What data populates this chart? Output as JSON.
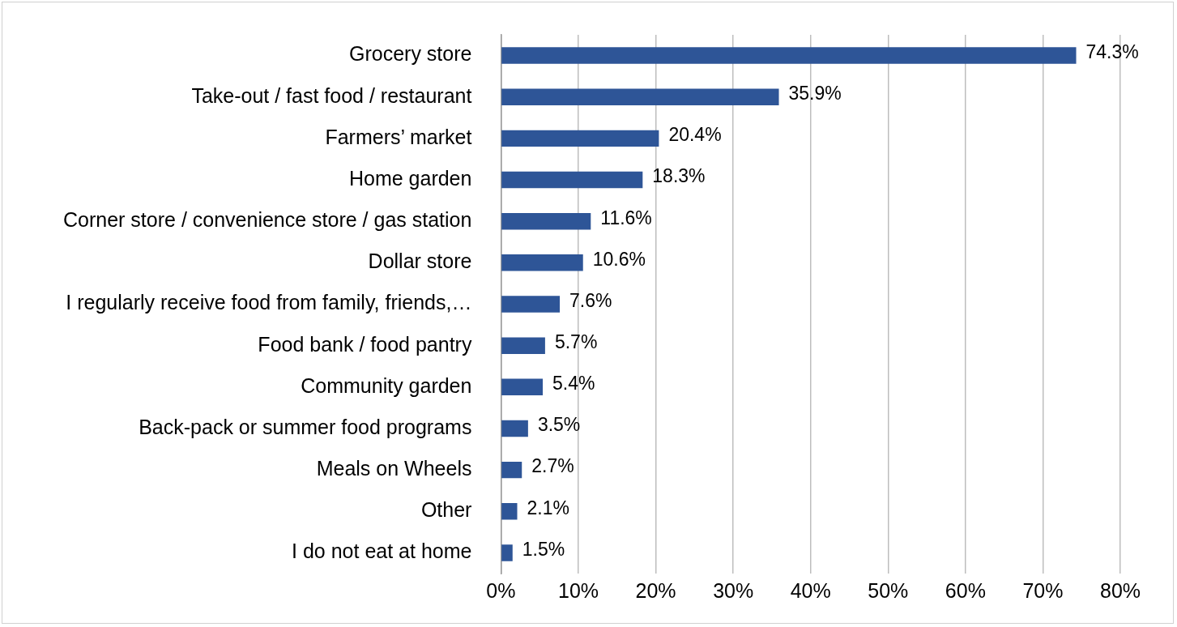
{
  "chart_data": {
    "type": "bar",
    "orientation": "horizontal",
    "categories": [
      "Grocery store",
      "Take-out / fast food / restaurant",
      "Farmers’ market",
      "Home garden",
      "Corner store / convenience store / gas station",
      "Dollar store",
      "I regularly receive food from family, friends,…",
      "Food bank / food pantry",
      "Community garden",
      "Back-pack or summer food programs",
      "Meals on Wheels",
      "Other",
      "I do not eat at home"
    ],
    "values": [
      74.3,
      35.9,
      20.4,
      18.3,
      11.6,
      10.6,
      7.6,
      5.7,
      5.4,
      3.5,
      2.7,
      2.1,
      1.5
    ],
    "value_labels": [
      "74.3%",
      "35.9%",
      "20.4%",
      "18.3%",
      "11.6%",
      "10.6%",
      "7.6%",
      "5.7%",
      "5.4%",
      "3.5%",
      "2.7%",
      "2.1%",
      "1.5%"
    ],
    "color": "#2e5597",
    "xlim": [
      0,
      80
    ],
    "xticks": [
      {
        "value": 0,
        "label": "0%"
      },
      {
        "value": 10,
        "label": "10%"
      },
      {
        "value": 20,
        "label": "20%"
      },
      {
        "value": 30,
        "label": "30%"
      },
      {
        "value": 40,
        "label": "40%"
      },
      {
        "value": 50,
        "label": "50%"
      },
      {
        "value": 60,
        "label": "60%"
      },
      {
        "value": 70,
        "label": "70%"
      },
      {
        "value": 80,
        "label": "80%"
      }
    ],
    "grid": "x",
    "legend": false
  }
}
